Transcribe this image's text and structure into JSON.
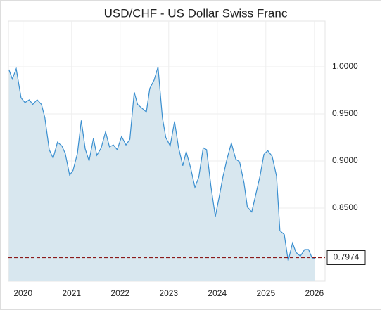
{
  "chart_data": {
    "type": "area",
    "title": "USD/CHF - US Dollar Swiss Franc",
    "x": [
      2019.71,
      2019.78,
      2019.86,
      2019.96,
      2020.04,
      2020.13,
      2020.2,
      2020.29,
      2020.38,
      2020.45,
      2020.54,
      2020.62,
      2020.71,
      2020.8,
      2020.87,
      2020.96,
      2021.03,
      2021.12,
      2021.2,
      2021.28,
      2021.36,
      2021.45,
      2021.52,
      2021.61,
      2021.7,
      2021.78,
      2021.86,
      2021.94,
      2022.03,
      2022.12,
      2022.2,
      2022.29,
      2022.36,
      2022.45,
      2022.54,
      2022.61,
      2022.7,
      2022.78,
      2022.87,
      2022.94,
      2023.03,
      2023.12,
      2023.2,
      2023.29,
      2023.36,
      2023.45,
      2023.54,
      2023.62,
      2023.71,
      2023.78,
      2023.87,
      2023.96,
      2024.04,
      2024.12,
      2024.2,
      2024.29,
      2024.38,
      2024.46,
      2024.55,
      2024.62,
      2024.71,
      2024.8,
      2024.88,
      2024.96,
      2025.04,
      2025.13,
      2025.22,
      2025.29,
      2025.38,
      2025.46,
      2025.55,
      2025.62,
      2025.71,
      2025.8,
      2025.88,
      2025.96,
      2026.01
    ],
    "series": [
      {
        "color": "#3a8fd0",
        "fill": "#d8e7ef",
        "values": [
          0.997,
          0.987,
          0.998,
          0.967,
          0.962,
          0.965,
          0.96,
          0.965,
          0.96,
          0.946,
          0.912,
          0.903,
          0.92,
          0.916,
          0.908,
          0.885,
          0.89,
          0.908,
          0.943,
          0.913,
          0.9,
          0.924,
          0.906,
          0.914,
          0.931,
          0.915,
          0.917,
          0.912,
          0.926,
          0.917,
          0.923,
          0.973,
          0.96,
          0.956,
          0.952,
          0.977,
          0.986,
          1.0,
          0.946,
          0.925,
          0.916,
          0.942,
          0.915,
          0.895,
          0.91,
          0.893,
          0.872,
          0.883,
          0.914,
          0.912,
          0.873,
          0.841,
          0.862,
          0.884,
          0.902,
          0.919,
          0.902,
          0.899,
          0.877,
          0.851,
          0.846,
          0.866,
          0.884,
          0.907,
          0.911,
          0.905,
          0.884,
          0.826,
          0.822,
          0.794,
          0.813,
          0.803,
          0.799,
          0.806,
          0.806,
          0.796,
          0.797
        ]
      }
    ],
    "xlim": [
      2019.7,
      2026.22
    ],
    "xticks": [
      2020,
      2021,
      2022,
      2023,
      2024,
      2025,
      2026
    ],
    "ylim": [
      0.7724,
      1.0485
    ],
    "yticks": [
      {
        "value": 0.85,
        "label": "0.8500"
      },
      {
        "value": 0.9,
        "label": "0.9000"
      },
      {
        "value": 0.95,
        "label": "0.9500"
      },
      {
        "value": 1,
        "label": "1.0000"
      }
    ],
    "grid": true,
    "current_value": 0.7974,
    "current_color": "#8b1a1a"
  }
}
